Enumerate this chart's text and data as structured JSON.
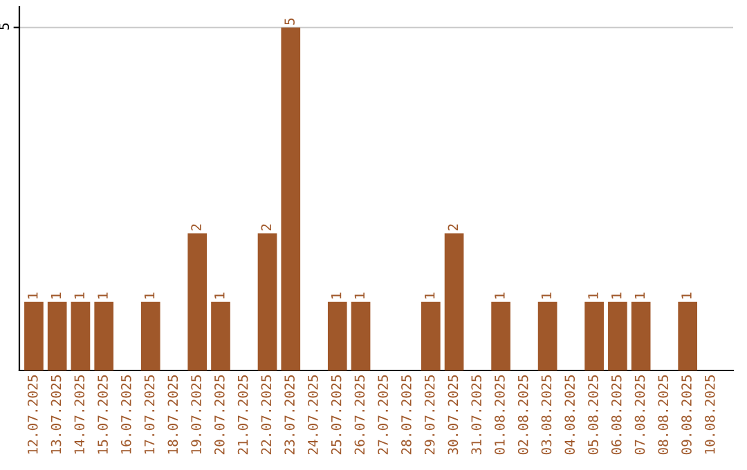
{
  "chart_data": {
    "type": "bar",
    "categories": [
      "12.07.2025",
      "13.07.2025",
      "14.07.2025",
      "15.07.2025",
      "16.07.2025",
      "17.07.2025",
      "18.07.2025",
      "19.07.2025",
      "20.07.2025",
      "21.07.2025",
      "22.07.2025",
      "23.07.2025",
      "24.07.2025",
      "25.07.2025",
      "26.07.2025",
      "27.07.2025",
      "28.07.2025",
      "29.07.2025",
      "30.07.2025",
      "31.07.2025",
      "01.08.2025",
      "02.08.2025",
      "03.08.2025",
      "04.08.2025",
      "05.08.2025",
      "06.08.2025",
      "07.08.2025",
      "08.08.2025",
      "09.08.2025",
      "10.08.2025"
    ],
    "values": [
      1,
      1,
      1,
      1,
      0,
      1,
      0,
      2,
      1,
      0,
      2,
      5,
      0,
      1,
      1,
      0,
      0,
      1,
      2,
      0,
      1,
      0,
      1,
      0,
      1,
      1,
      1,
      0,
      1,
      0
    ],
    "value_labels": [
      "1",
      "1",
      "1",
      "1",
      null,
      "1",
      null,
      "2",
      "1",
      null,
      "2",
      "5",
      null,
      "1",
      "1",
      null,
      null,
      "1",
      "2",
      null,
      "1",
      null,
      "1",
      null,
      "1",
      "1",
      "1",
      null,
      "1",
      null
    ],
    "color": "#a0582a",
    "ylim": [
      0,
      5.3
    ],
    "yticks": [
      5
    ],
    "grid": "y",
    "legend": false
  }
}
